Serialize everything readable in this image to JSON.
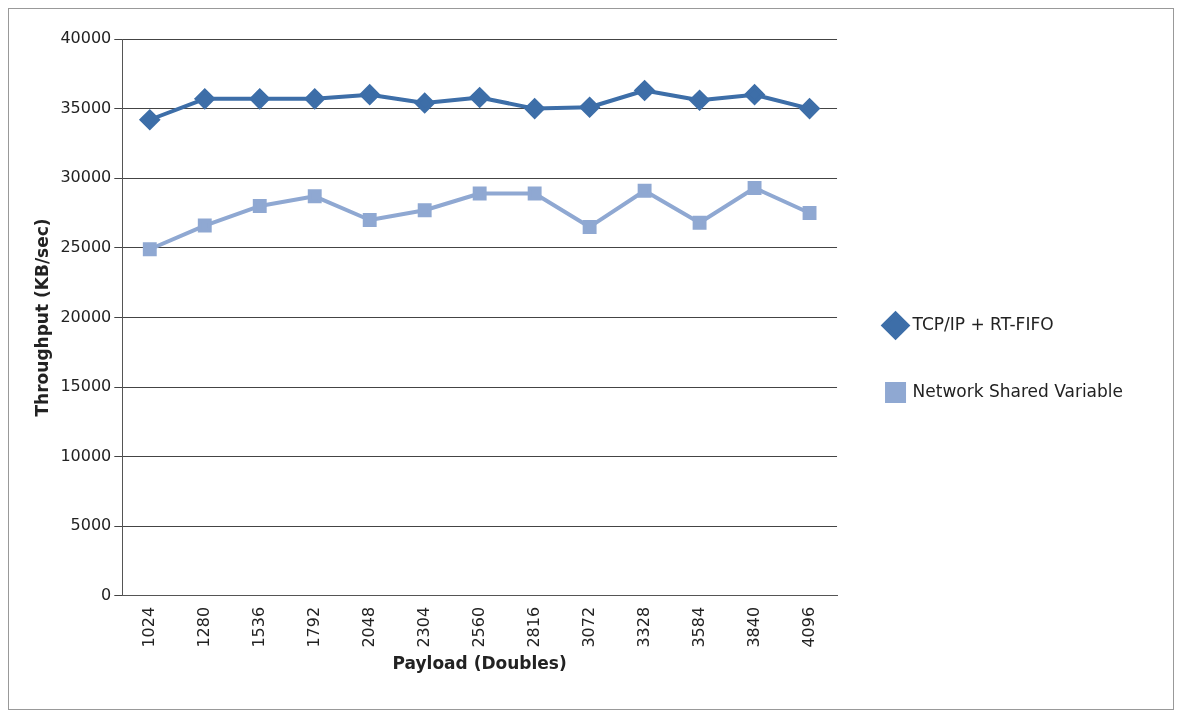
{
  "chart_data": {
    "type": "line",
    "xlabel": "Payload (Doubles)",
    "ylabel": "Throughput (KB/sec)",
    "categories": [
      "1024",
      "1280",
      "1536",
      "1792",
      "2048",
      "2304",
      "2560",
      "2816",
      "3072",
      "3328",
      "3584",
      "3840",
      "4096"
    ],
    "series": [
      {
        "name": "TCP/IP + RT-FIFO",
        "color": "#3d6ea8",
        "marker": "diamond",
        "values": [
          34200,
          35700,
          35700,
          35700,
          36000,
          35400,
          35800,
          35000,
          35100,
          36300,
          35600,
          36000,
          35000
        ]
      },
      {
        "name": "Network Shared Variable",
        "color": "#8fa8d2",
        "marker": "square",
        "values": [
          24900,
          26600,
          28000,
          28700,
          27000,
          27700,
          28900,
          28900,
          26500,
          29100,
          26800,
          29300,
          27500
        ]
      }
    ],
    "ylim": [
      0,
      40000
    ],
    "yticks": [
      0,
      5000,
      10000,
      15000,
      20000,
      25000,
      30000,
      35000,
      40000
    ],
    "grid": "y",
    "legend": "right"
  }
}
